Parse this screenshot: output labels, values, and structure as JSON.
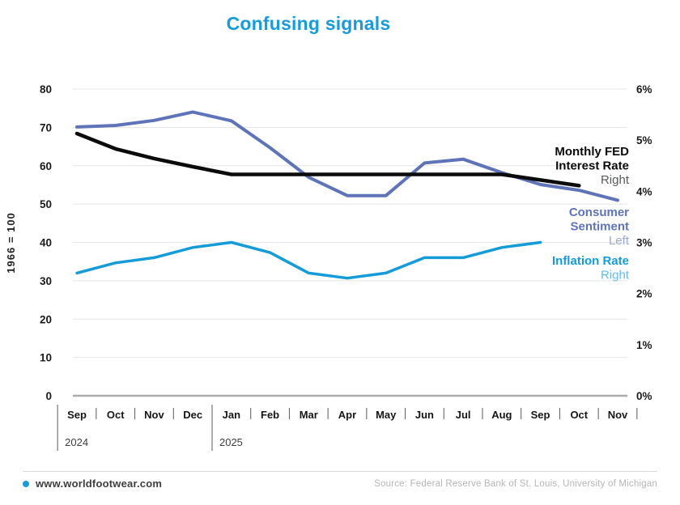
{
  "title": {
    "text": "Confusing signals",
    "color": "#189bd8"
  },
  "footer": {
    "site": "www.worldfootwear.com",
    "source": "Source: Federal Reserve Bank of St. Louis, University of Michigan",
    "dot_color": "#189bd8"
  },
  "chart_data": {
    "type": "line",
    "title": "Confusing signals",
    "grid": true,
    "legend_position": "right-inside",
    "x": [
      "Sep",
      "Oct",
      "Nov",
      "Dec",
      "Jan",
      "Feb",
      "Mar",
      "Apr",
      "May",
      "Jun",
      "Jul",
      "Aug",
      "Sep",
      "Oct",
      "Nov"
    ],
    "year_breaks": [
      {
        "label": "2024",
        "index": 0
      },
      {
        "label": "2025",
        "index": 4
      }
    ],
    "left_axis": {
      "title": "1966 = 100",
      "ticks": [
        0,
        10,
        20,
        30,
        40,
        50,
        60,
        70,
        80
      ],
      "range": [
        0,
        80
      ]
    },
    "right_axis": {
      "tick_labels": [
        "0%",
        "1%",
        "2%",
        "3%",
        "4%",
        "5%",
        "6%"
      ],
      "ticks": [
        0,
        1,
        2,
        3,
        4,
        5,
        6
      ],
      "range": [
        0,
        6
      ]
    },
    "series": [
      {
        "name": "consumer-sentiment",
        "label_lines": [
          "Consumer",
          "Sentiment"
        ],
        "axis_note": "Left",
        "axis": "left",
        "color": "#5f73b9",
        "note_color": "#9da9d8",
        "values": [
          70.1,
          70.5,
          71.8,
          74.0,
          71.7,
          64.7,
          57.0,
          52.2,
          52.2,
          60.7,
          61.7,
          58.2,
          55.1,
          53.6,
          51.0
        ]
      },
      {
        "name": "fed-rate",
        "label_lines": [
          "Monthly FED",
          "Interest Rate"
        ],
        "axis_note": "Right",
        "axis": "right",
        "color": "#0b0b0b",
        "note_color": "#58595b",
        "values": [
          5.13,
          4.83,
          4.64,
          4.48,
          4.33,
          4.33,
          4.33,
          4.33,
          4.33,
          4.33,
          4.33,
          4.33,
          4.22,
          4.11,
          null
        ]
      },
      {
        "name": "inflation-rate",
        "label_lines": [
          "Inflation Rate"
        ],
        "axis_note": "Right",
        "axis": "right",
        "color": "#149bd8",
        "note_color": "#66bce8",
        "values": [
          2.4,
          2.6,
          2.7,
          2.9,
          3.0,
          2.8,
          2.4,
          2.3,
          2.4,
          2.7,
          2.7,
          2.9,
          3.0,
          null,
          null
        ]
      }
    ]
  }
}
